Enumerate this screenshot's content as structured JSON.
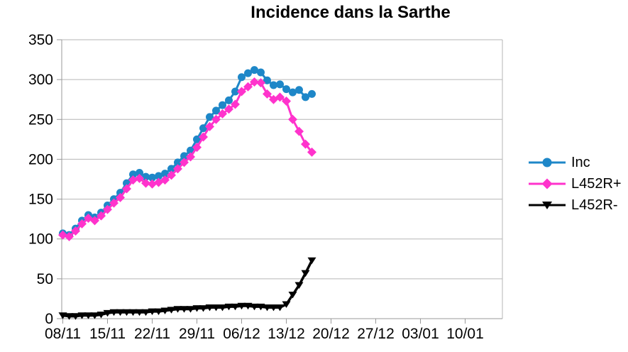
{
  "chart_data": {
    "type": "line",
    "title": "Incidence dans la Sarthe",
    "xlabel": "",
    "ylabel": "",
    "ylim": [
      0,
      350
    ],
    "y_tick_step": 50,
    "y_tick_labels": [
      "0",
      "50",
      "100",
      "150",
      "200",
      "250",
      "300",
      "350"
    ],
    "x_tick_labels": [
      "08/11",
      "15/11",
      "22/11",
      "29/11",
      "06/12",
      "13/12",
      "20/12",
      "27/12",
      "03/01",
      "10/01"
    ],
    "x_tick_day_indices": [
      0,
      7,
      14,
      21,
      28,
      35,
      42,
      49,
      56,
      63
    ],
    "grid": "horizontal",
    "legend_position": "right",
    "colors": {
      "grid": "#b6b6b6",
      "axis": "#9a9a9a",
      "text": "#000000",
      "background": "#ffffff"
    },
    "x": [
      "08/11",
      "09/11",
      "10/11",
      "11/11",
      "12/11",
      "13/11",
      "14/11",
      "15/11",
      "16/11",
      "17/11",
      "18/11",
      "19/11",
      "20/11",
      "21/11",
      "22/11",
      "23/11",
      "24/11",
      "25/11",
      "26/11",
      "27/11",
      "28/11",
      "29/11",
      "30/11",
      "01/12",
      "02/12",
      "03/12",
      "04/12",
      "05/12",
      "06/12",
      "07/12",
      "08/12",
      "09/12",
      "10/12",
      "11/12",
      "12/12",
      "13/12",
      "14/12",
      "15/12",
      "16/12",
      "17/12"
    ],
    "series": [
      {
        "name": "Inc",
        "color": "#1e87c8",
        "marker": "circle",
        "values": [
          107,
          105,
          113,
          123,
          130,
          127,
          133,
          142,
          150,
          158,
          170,
          181,
          183,
          178,
          177,
          179,
          182,
          188,
          196,
          204,
          211,
          225,
          239,
          253,
          261,
          268,
          274,
          285,
          303,
          308,
          312,
          309,
          299,
          293,
          294,
          288,
          284,
          287,
          278,
          282
        ]
      },
      {
        "name": "L452R+",
        "color": "#ff33cc",
        "marker": "diamond",
        "values": [
          105,
          103,
          110,
          119,
          126,
          123,
          129,
          137,
          145,
          152,
          163,
          174,
          176,
          170,
          169,
          171,
          174,
          180,
          188,
          196,
          203,
          215,
          228,
          241,
          250,
          257,
          263,
          269,
          285,
          291,
          297,
          296,
          282,
          275,
          278,
          273,
          250,
          235,
          219,
          209
        ]
      },
      {
        "name": "L452R-",
        "color": "#000000",
        "marker": "triangle-down",
        "values": [
          4,
          3,
          3,
          4,
          4,
          4,
          5,
          7,
          8,
          8,
          8,
          8,
          8,
          8,
          9,
          9,
          10,
          11,
          12,
          12,
          12,
          13,
          13,
          14,
          14,
          14,
          15,
          15,
          16,
          16,
          15,
          15,
          14,
          14,
          14,
          18,
          30,
          42,
          57,
          73
        ]
      }
    ]
  }
}
